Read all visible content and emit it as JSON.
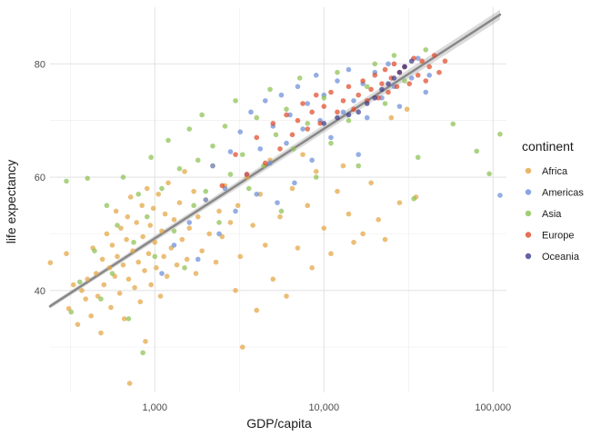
{
  "chart_data": {
    "type": "scatter",
    "title": "",
    "xlabel": "GDP/capita",
    "ylabel": "life expectancy",
    "x_scale": "log10",
    "xlim": [
      240,
      120000
    ],
    "ylim": [
      22,
      90
    ],
    "x_ticks": [
      1000,
      10000,
      100000
    ],
    "x_tick_labels": [
      "1,000",
      "10,000",
      "100,000"
    ],
    "y_ticks": [
      40,
      60,
      80
    ],
    "y_tick_labels": [
      "40",
      "60",
      "80"
    ],
    "grid": true,
    "legend": {
      "title": "continent",
      "position": "right"
    },
    "trend": {
      "type": "linear-fit-log-x",
      "from": [
        240,
        37.2
      ],
      "to": [
        110000,
        88.7
      ],
      "color": "#888888"
    },
    "series": [
      {
        "name": "Africa",
        "color": "#e3a543",
        "points": [
          [
            241,
            44.9
          ],
          [
            300,
            46.5
          ],
          [
            310,
            36.8
          ],
          [
            330,
            41.0
          ],
          [
            350,
            34.0
          ],
          [
            370,
            40.0
          ],
          [
            390,
            38.5
          ],
          [
            400,
            42.0
          ],
          [
            420,
            35.5
          ],
          [
            430,
            47.5
          ],
          [
            450,
            43.0
          ],
          [
            460,
            39.0
          ],
          [
            480,
            32.5
          ],
          [
            490,
            45.5
          ],
          [
            500,
            41.0
          ],
          [
            520,
            50.0
          ],
          [
            540,
            44.0
          ],
          [
            550,
            37.0
          ],
          [
            560,
            48.0
          ],
          [
            580,
            42.5
          ],
          [
            590,
            54.0
          ],
          [
            600,
            46.0
          ],
          [
            620,
            39.5
          ],
          [
            630,
            51.0
          ],
          [
            650,
            44.5
          ],
          [
            660,
            35.0
          ],
          [
            680,
            49.0
          ],
          [
            690,
            53.0
          ],
          [
            700,
            42.0
          ],
          [
            710,
            23.6
          ],
          [
            720,
            56.5
          ],
          [
            740,
            47.0
          ],
          [
            760,
            40.5
          ],
          [
            780,
            52.0
          ],
          [
            800,
            45.0
          ],
          [
            820,
            38.0
          ],
          [
            840,
            55.0
          ],
          [
            850,
            49.5
          ],
          [
            870,
            43.5
          ],
          [
            880,
            31.0
          ],
          [
            900,
            58.0
          ],
          [
            920,
            46.5
          ],
          [
            940,
            51.5
          ],
          [
            950,
            41.0
          ],
          [
            980,
            54.5
          ],
          [
            1000,
            48.5
          ],
          [
            1020,
            44.0
          ],
          [
            1050,
            57.0
          ],
          [
            1080,
            39.0
          ],
          [
            1100,
            50.5
          ],
          [
            1130,
            46.0
          ],
          [
            1150,
            53.5
          ],
          [
            1180,
            42.5
          ],
          [
            1200,
            59.0
          ],
          [
            1250,
            47.5
          ],
          [
            1300,
            52.5
          ],
          [
            1350,
            44.5
          ],
          [
            1400,
            55.5
          ],
          [
            1450,
            49.0
          ],
          [
            1500,
            61.0
          ],
          [
            1550,
            45.5
          ],
          [
            1600,
            51.0
          ],
          [
            1700,
            57.5
          ],
          [
            1750,
            43.0
          ],
          [
            1800,
            53.0
          ],
          [
            1900,
            47.0
          ],
          [
            2000,
            56.0
          ],
          [
            2100,
            50.0
          ],
          [
            2200,
            62.0
          ],
          [
            2300,
            45.0
          ],
          [
            2400,
            54.0
          ],
          [
            2500,
            49.5
          ],
          [
            2600,
            58.5
          ],
          [
            2800,
            52.0
          ],
          [
            3000,
            40.0
          ],
          [
            3100,
            55.0
          ],
          [
            3200,
            46.0
          ],
          [
            3300,
            30.0
          ],
          [
            3500,
            60.0
          ],
          [
            3800,
            51.5
          ],
          [
            4000,
            36.5
          ],
          [
            4200,
            57.0
          ],
          [
            4500,
            48.0
          ],
          [
            4800,
            63.0
          ],
          [
            5000,
            42.0
          ],
          [
            5500,
            53.0
          ],
          [
            6000,
            39.0
          ],
          [
            6500,
            58.0
          ],
          [
            7000,
            47.5
          ],
          [
            7500,
            64.0
          ],
          [
            8000,
            55.0
          ],
          [
            8500,
            44.0
          ],
          [
            9000,
            61.0
          ],
          [
            10000,
            51.0
          ],
          [
            11000,
            46.5
          ],
          [
            12000,
            57.5
          ],
          [
            13000,
            62.0
          ],
          [
            14000,
            53.5
          ],
          [
            15000,
            48.5
          ],
          [
            17000,
            50.0
          ],
          [
            19000,
            59.0
          ],
          [
            21000,
            52.5
          ],
          [
            23000,
            49.0
          ],
          [
            25000,
            70.5
          ],
          [
            28000,
            55.5
          ],
          [
            31000,
            72.0
          ],
          [
            35000,
            56.5
          ]
        ]
      },
      {
        "name": "Americas",
        "color": "#6b8ed8",
        "points": [
          [
            1100,
            43.0
          ],
          [
            1300,
            48.0
          ],
          [
            1600,
            52.0
          ],
          [
            1800,
            45.5
          ],
          [
            2000,
            56.0
          ],
          [
            2200,
            62.0
          ],
          [
            2400,
            50.0
          ],
          [
            2600,
            58.0
          ],
          [
            2800,
            64.5
          ],
          [
            3000,
            54.0
          ],
          [
            3200,
            68.0
          ],
          [
            3500,
            60.5
          ],
          [
            3700,
            71.5
          ],
          [
            4000,
            57.0
          ],
          [
            4200,
            65.0
          ],
          [
            4500,
            73.5
          ],
          [
            4800,
            62.5
          ],
          [
            5000,
            69.0
          ],
          [
            5300,
            55.5
          ],
          [
            5600,
            74.5
          ],
          [
            6000,
            66.0
          ],
          [
            6300,
            71.0
          ],
          [
            6700,
            59.0
          ],
          [
            7000,
            76.0
          ],
          [
            7500,
            68.5
          ],
          [
            8000,
            73.0
          ],
          [
            8500,
            63.0
          ],
          [
            9000,
            78.0
          ],
          [
            9500,
            70.0
          ],
          [
            10000,
            74.5
          ],
          [
            11000,
            67.0
          ],
          [
            12000,
            77.0
          ],
          [
            13000,
            71.5
          ],
          [
            14000,
            79.0
          ],
          [
            15000,
            73.5
          ],
          [
            16000,
            64.0
          ],
          [
            17000,
            76.5
          ],
          [
            18000,
            70.5
          ],
          [
            20000,
            78.5
          ],
          [
            22000,
            74.0
          ],
          [
            24000,
            80.0
          ],
          [
            26000,
            76.0
          ],
          [
            28000,
            72.5
          ],
          [
            30000,
            79.5
          ],
          [
            33000,
            77.5
          ],
          [
            36000,
            81.0
          ],
          [
            40000,
            75.0
          ],
          [
            42000,
            78.0
          ],
          [
            110000,
            56.8
          ]
        ]
      },
      {
        "name": "Asia",
        "color": "#8cc152",
        "points": [
          [
            300,
            59.3
          ],
          [
            320,
            36.2
          ],
          [
            360,
            41.5
          ],
          [
            400,
            59.8
          ],
          [
            440,
            47.0
          ],
          [
            480,
            38.5
          ],
          [
            520,
            55.0
          ],
          [
            560,
            43.0
          ],
          [
            600,
            51.5
          ],
          [
            650,
            60.0
          ],
          [
            700,
            35.0
          ],
          [
            750,
            48.5
          ],
          [
            800,
            57.0
          ],
          [
            850,
            29.0
          ],
          [
            900,
            53.0
          ],
          [
            950,
            63.5
          ],
          [
            1000,
            46.0
          ],
          [
            1100,
            58.0
          ],
          [
            1200,
            66.5
          ],
          [
            1300,
            50.5
          ],
          [
            1400,
            61.5
          ],
          [
            1500,
            44.0
          ],
          [
            1600,
            68.5
          ],
          [
            1700,
            55.0
          ],
          [
            1800,
            63.0
          ],
          [
            1900,
            71.0
          ],
          [
            2000,
            57.5
          ],
          [
            2200,
            65.5
          ],
          [
            2400,
            52.0
          ],
          [
            2600,
            69.0
          ],
          [
            2800,
            60.5
          ],
          [
            3000,
            73.5
          ],
          [
            3300,
            64.0
          ],
          [
            3600,
            58.0
          ],
          [
            4000,
            70.5
          ],
          [
            4400,
            62.0
          ],
          [
            4800,
            75.5
          ],
          [
            5200,
            67.5
          ],
          [
            5600,
            54.0
          ],
          [
            6000,
            72.0
          ],
          [
            6600,
            65.0
          ],
          [
            7200,
            77.5
          ],
          [
            8000,
            69.5
          ],
          [
            9000,
            60.0
          ],
          [
            10000,
            74.0
          ],
          [
            11000,
            66.0
          ],
          [
            12000,
            78.5
          ],
          [
            14000,
            70.0
          ],
          [
            16000,
            62.0
          ],
          [
            18000,
            76.0
          ],
          [
            20000,
            80.0
          ],
          [
            23000,
            73.0
          ],
          [
            26000,
            81.5
          ],
          [
            30000,
            77.0
          ],
          [
            34000,
            56.2
          ],
          [
            36000,
            63.5
          ],
          [
            40000,
            82.5
          ],
          [
            58000,
            69.4
          ],
          [
            80000,
            64.6
          ],
          [
            95000,
            60.6
          ],
          [
            110000,
            67.6
          ]
        ]
      },
      {
        "name": "Europe",
        "color": "#e04b2a",
        "points": [
          [
            2500,
            58.5
          ],
          [
            3000,
            64.0
          ],
          [
            3500,
            60.5
          ],
          [
            4000,
            67.0
          ],
          [
            4500,
            62.5
          ],
          [
            5000,
            69.5
          ],
          [
            5500,
            65.0
          ],
          [
            6000,
            71.0
          ],
          [
            6500,
            67.5
          ],
          [
            7000,
            70.0
          ],
          [
            7500,
            73.0
          ],
          [
            8000,
            68.5
          ],
          [
            8500,
            71.5
          ],
          [
            9000,
            74.5
          ],
          [
            9500,
            69.5
          ],
          [
            10000,
            72.5
          ],
          [
            11000,
            75.0
          ],
          [
            12000,
            71.5
          ],
          [
            13000,
            73.5
          ],
          [
            14000,
            76.0
          ],
          [
            15000,
            72.0
          ],
          [
            16000,
            74.5
          ],
          [
            17000,
            77.0
          ],
          [
            18000,
            73.5
          ],
          [
            19000,
            75.5
          ],
          [
            20000,
            78.0
          ],
          [
            21000,
            74.0
          ],
          [
            22000,
            76.5
          ],
          [
            23000,
            79.0
          ],
          [
            24000,
            75.0
          ],
          [
            25000,
            77.5
          ],
          [
            26000,
            80.0
          ],
          [
            27000,
            76.0
          ],
          [
            28000,
            78.5
          ],
          [
            30000,
            79.5
          ],
          [
            32000,
            76.5
          ],
          [
            34000,
            81.0
          ],
          [
            36000,
            78.0
          ],
          [
            38000,
            80.5
          ],
          [
            40000,
            77.0
          ],
          [
            42000,
            79.5
          ],
          [
            45000,
            81.5
          ],
          [
            48000,
            78.5
          ],
          [
            52000,
            80.5
          ]
        ]
      },
      {
        "name": "Oceania",
        "color": "#3c3c8c",
        "points": [
          [
            10000,
            69.5
          ],
          [
            12000,
            70.5
          ],
          [
            14000,
            71.0
          ],
          [
            16000,
            71.5
          ],
          [
            18000,
            73.0
          ],
          [
            20000,
            74.0
          ],
          [
            22000,
            75.5
          ],
          [
            24000,
            76.5
          ],
          [
            26000,
            77.5
          ],
          [
            28000,
            78.5
          ],
          [
            30000,
            79.5
          ],
          [
            33000,
            80.5
          ]
        ]
      }
    ]
  }
}
